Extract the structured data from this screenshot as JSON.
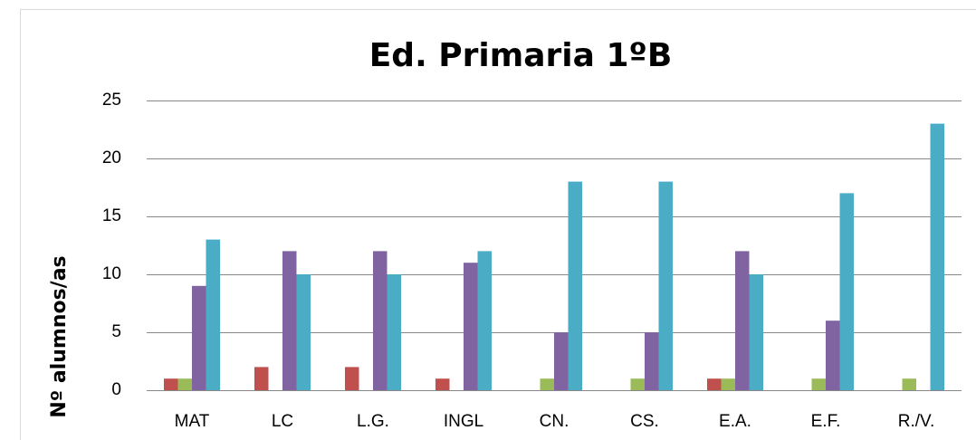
{
  "chart_data": {
    "type": "bar",
    "title": "Ed. Primaria 1ºB",
    "y_label": "Nº alumnos/as",
    "categories": [
      "MAT",
      "LC",
      "L.G.",
      "INGL",
      "CN.",
      "CS.",
      "E.A.",
      "E.F.",
      "R./V."
    ],
    "series": [
      {
        "color": "#c0504d",
        "values": [
          1,
          2,
          2,
          1,
          0,
          0,
          1,
          0,
          0
        ]
      },
      {
        "color": "#9bbb59",
        "values": [
          1,
          0,
          0,
          0,
          1,
          1,
          1,
          1,
          1
        ]
      },
      {
        "color": "#8064a2",
        "values": [
          9,
          12,
          12,
          11,
          5,
          5,
          12,
          6,
          0
        ]
      },
      {
        "color": "#4bacc6",
        "values": [
          13,
          10,
          10,
          12,
          18,
          18,
          10,
          17,
          23
        ]
      }
    ],
    "ylim": [
      0,
      25
    ],
    "yticks": [
      0,
      5,
      10,
      15,
      20,
      25
    ],
    "grid": true
  }
}
